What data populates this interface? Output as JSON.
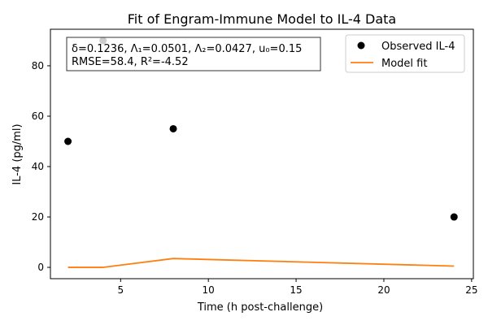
{
  "chart_data": {
    "type": "scatter",
    "title": "Fit of Engram-Immune Model to IL-4 Data",
    "xlabel": "Time (h post-challenge)",
    "ylabel": "IL-4 (pg/ml)",
    "xlim": [
      1.0,
      25.1
    ],
    "ylim": [
      -4.5,
      94.5
    ],
    "x_ticks": [
      5,
      10,
      15,
      20,
      25
    ],
    "y_ticks": [
      0,
      20,
      40,
      60,
      80
    ],
    "grid": false,
    "legend_position": "top-right",
    "series": [
      {
        "name": "Observed IL-4",
        "kind": "scatter",
        "color": "#000000",
        "x": [
          2,
          4,
          8,
          24
        ],
        "y": [
          50,
          90,
          55,
          20
        ]
      },
      {
        "name": "Model fit",
        "kind": "line",
        "color": "#ff7f0e",
        "x": [
          2,
          4,
          8,
          24
        ],
        "y": [
          0.0,
          0.0,
          3.5,
          0.5
        ]
      }
    ],
    "annotation": {
      "lines": [
        "δ=0.1236, Λ₁=0.0501, Λ₂=0.0427, u₀=0.15",
        "RMSE=58.4, R²=-4.52"
      ]
    }
  }
}
